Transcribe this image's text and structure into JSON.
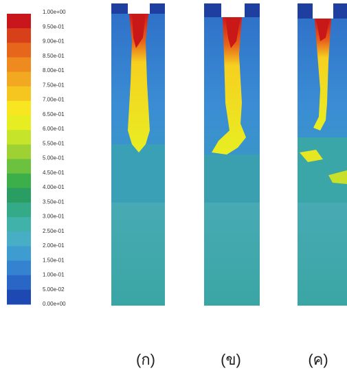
{
  "colorbar": {
    "labels": [
      "1.00e+00",
      "9.50e-01",
      "9.00e-01",
      "8.50e-01",
      "8.00e-01",
      "7.50e-01",
      "7.00e-01",
      "6.50e-01",
      "6.00e-01",
      "5.50e-01",
      "5.00e-01",
      "4.50e-01",
      "4.00e-01",
      "3.50e-01",
      "3.00e-01",
      "2.50e-01",
      "2.00e-01",
      "1.50e-01",
      "1.00e-01",
      "5.00e-02",
      "0.00e+00"
    ],
    "colors": [
      "#c8161c",
      "#d8401a",
      "#e6661c",
      "#ee8a1e",
      "#f2a820",
      "#f6c620",
      "#f8e620",
      "#e6ee22",
      "#c6e42a",
      "#9ed234",
      "#6cc23e",
      "#3cae4a",
      "#2a9e62",
      "#34aa88",
      "#40b2aa",
      "#48aec6",
      "#3e9cd0",
      "#3482d0",
      "#2a66c6",
      "#1e48b2"
    ]
  },
  "panels": [
    "(ก)",
    "(ข)",
    "(ค)"
  ]
}
